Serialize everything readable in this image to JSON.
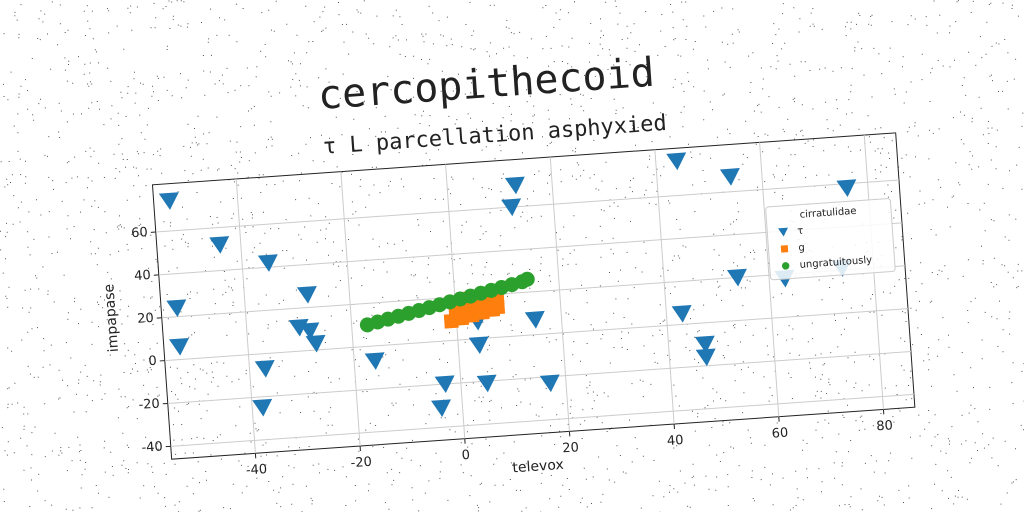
{
  "chart_data": {
    "type": "scatter",
    "title": "cercopithecoid",
    "subtitle": "τ L parcellation asphyxied",
    "x_label": "televox",
    "y_label": "impapase",
    "legend_title": "cirratulidae",
    "legend_position": "right",
    "grid": true,
    "xlim": [
      -56,
      86
    ],
    "ylim": [
      -46,
      82
    ],
    "xticks": [
      -40,
      -20,
      0,
      20,
      40,
      60,
      80
    ],
    "yticks": [
      -40,
      -20,
      0,
      20,
      40,
      60
    ],
    "series": [
      {
        "name": "τ",
        "color": "#1f77b4",
        "marker": "triangle",
        "x": [
          -53,
          -44,
          -35,
          -53,
          -53,
          -28,
          -30,
          -28,
          -27,
          -37,
          -38,
          -16,
          -3,
          -4,
          4,
          4,
          5,
          13,
          12,
          15,
          17,
          44,
          43,
          47,
          47,
          54,
          54,
          63,
          74,
          76
        ],
        "y": [
          74,
          52,
          42,
          24,
          6,
          26,
          11,
          9,
          3,
          -7,
          -25,
          -7,
          -20,
          -31,
          8,
          -3,
          -21,
          70,
          60,
          7,
          -23,
          76,
          5,
          -10,
          -16,
          67,
          20,
          18,
          21,
          58
        ]
      },
      {
        "name": "g",
        "color": "#ff7f0e",
        "marker": "square",
        "x": [
          -1,
          1,
          3,
          5,
          7,
          8,
          0,
          2,
          4,
          6,
          8,
          3
        ],
        "y": [
          9,
          10,
          11,
          12,
          13,
          14,
          13,
          15,
          16,
          17,
          18,
          19
        ]
      },
      {
        "name": "ungratuitously",
        "color": "#2ca02c",
        "marker": "circle",
        "x": [
          -17,
          -15,
          -13,
          -11,
          -9,
          -7,
          -5,
          -3,
          -1,
          1,
          3,
          5,
          7,
          9,
          11,
          13,
          14
        ],
        "y": [
          10,
          11,
          12,
          13,
          14,
          15,
          16,
          17,
          18,
          19,
          20,
          21,
          22,
          23,
          24,
          25,
          26
        ]
      }
    ]
  }
}
